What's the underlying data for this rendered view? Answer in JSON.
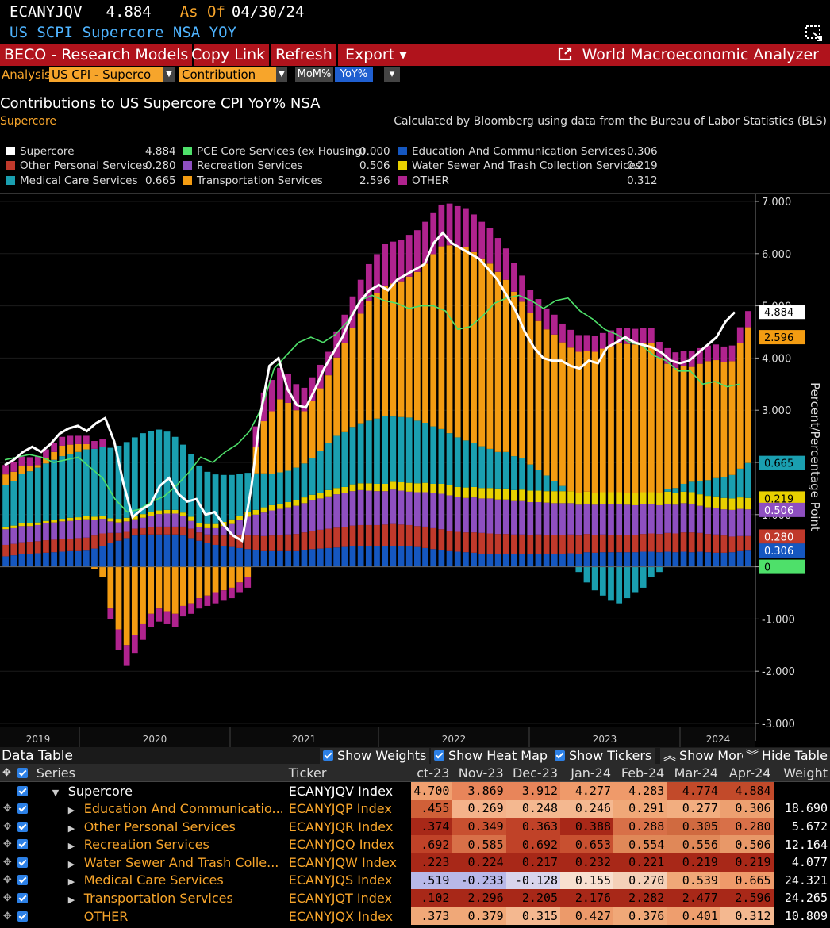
{
  "header": {
    "ticker": "ECANYJQV",
    "value": "4.884",
    "as_of_label": "As Of",
    "as_of_date": "04/30/24",
    "subtitle": "US SCPI Supercore NSA YOY"
  },
  "menu": {
    "items": [
      "BECO - Research Models",
      "Copy Link",
      "Refresh",
      "Export ▾"
    ],
    "app_name": "World Macroeconomic Analyzer"
  },
  "toolbar": {
    "analysis_label": "Analysis",
    "analysis_value": "US CPI - Superco",
    "mode_value": "Contribution",
    "mom_label": "MoM%",
    "yoy_label": "YoY%"
  },
  "chart_header": {
    "title": "Contributions to US Supercore CPI YoY% NSA",
    "subtitle": "Supercore",
    "note": "Calculated by Bloomberg using data from the Bureau of Labor Statistics (BLS)"
  },
  "legend": [
    {
      "name": "Supercore",
      "value": "4.884",
      "color": "#ffffff"
    },
    {
      "name": "Other Personal Services",
      "value": "0.280",
      "color": "#c0392b"
    },
    {
      "name": "Medical Care Services",
      "value": "0.665",
      "color": "#1a9fb0"
    },
    {
      "name": "PCE Core Services (ex Housing)",
      "value": "0.000",
      "color": "#4ee06a"
    },
    {
      "name": "Recreation Services",
      "value": "0.506",
      "color": "#8e4fc0"
    },
    {
      "name": "Transportation Services",
      "value": "2.596",
      "color": "#f39c12"
    },
    {
      "name": "Education And Communication Services",
      "value": "0.306",
      "color": "#1557c0"
    },
    {
      "name": "Water Sewer And Trash Collection Services",
      "value": "0.219",
      "color": "#e8d000"
    },
    {
      "name": "OTHER",
      "value": "0.312",
      "color": "#b0238e"
    }
  ],
  "chart_data": {
    "type": "bar",
    "stacked": true,
    "ylabel": "Percent/Percentage Point",
    "ylim": [
      -3,
      7
    ],
    "y_ticks": [
      "7.000",
      "6.000",
      "5.000",
      "4.000",
      "3.000",
      "2.000",
      "1.000",
      "0",
      "-1.000",
      "-2.000",
      "-3.000"
    ],
    "x_year_labels": [
      "2019",
      "2020",
      "2021",
      "2022",
      "2023",
      "2024"
    ],
    "series_order": [
      "edu",
      "oth",
      "rec",
      "water",
      "med",
      "trans",
      "other"
    ],
    "colors": {
      "edu": "#1557c0",
      "oth": "#c0392b",
      "rec": "#8e4fc0",
      "water": "#e8d000",
      "med": "#1a9fb0",
      "trans": "#f39c12",
      "other": "#b0238e",
      "total": "#ffffff",
      "pce": "#4ee06a"
    },
    "bars": {
      "edu": [
        0.2,
        0.22,
        0.24,
        0.25,
        0.26,
        0.27,
        0.28,
        0.29,
        0.3,
        0.3,
        0.31,
        0.35,
        0.4,
        0.45,
        0.5,
        0.55,
        0.6,
        0.62,
        0.62,
        0.62,
        0.62,
        0.62,
        0.6,
        0.55,
        0.5,
        0.45,
        0.42,
        0.4,
        0.38,
        0.36,
        0.34,
        0.32,
        0.3,
        0.3,
        0.3,
        0.3,
        0.3,
        0.32,
        0.34,
        0.35,
        0.36,
        0.37,
        0.38,
        0.4,
        0.4,
        0.4,
        0.4,
        0.4,
        0.4,
        0.4,
        0.4,
        0.38,
        0.36,
        0.34,
        0.32,
        0.3,
        0.29,
        0.28,
        0.27,
        0.25,
        0.25,
        0.25,
        0.25,
        0.24,
        0.25,
        0.24,
        0.25,
        0.25,
        0.24,
        0.25,
        0.26,
        0.25,
        0.28,
        0.27,
        0.28,
        0.28,
        0.28,
        0.28,
        0.28,
        0.29,
        0.29,
        0.28,
        0.29,
        0.28,
        0.29,
        0.28,
        0.29,
        0.28,
        0.27,
        0.27,
        0.28,
        0.3,
        0.31
      ],
      "oth": [
        0.22,
        0.22,
        0.23,
        0.23,
        0.23,
        0.24,
        0.24,
        0.24,
        0.24,
        0.25,
        0.25,
        0.25,
        0.24,
        0.2,
        0.15,
        0.12,
        0.13,
        0.12,
        0.14,
        0.15,
        0.15,
        0.15,
        0.17,
        0.18,
        0.16,
        0.17,
        0.18,
        0.2,
        0.22,
        0.25,
        0.27,
        0.28,
        0.29,
        0.3,
        0.31,
        0.32,
        0.33,
        0.34,
        0.35,
        0.36,
        0.37,
        0.38,
        0.38,
        0.39,
        0.4,
        0.4,
        0.4,
        0.41,
        0.42,
        0.41,
        0.4,
        0.4,
        0.41,
        0.4,
        0.4,
        0.39,
        0.38,
        0.38,
        0.39,
        0.4,
        0.39,
        0.38,
        0.38,
        0.38,
        0.37,
        0.37,
        0.37,
        0.36,
        0.37,
        0.36,
        0.36,
        0.35,
        0.35,
        0.34,
        0.34,
        0.33,
        0.33,
        0.33,
        0.33,
        0.34,
        0.35,
        0.35,
        0.36,
        0.36,
        0.37,
        0.38,
        0.36,
        0.35,
        0.35,
        0.33,
        0.3,
        0.29,
        0.28
      ],
      "rec": [
        0.3,
        0.3,
        0.31,
        0.3,
        0.31,
        0.32,
        0.33,
        0.34,
        0.34,
        0.34,
        0.35,
        0.3,
        0.28,
        0.22,
        0.2,
        0.2,
        0.18,
        0.2,
        0.22,
        0.24,
        0.25,
        0.25,
        0.2,
        0.15,
        0.1,
        0.12,
        0.14,
        0.18,
        0.22,
        0.28,
        0.35,
        0.4,
        0.45,
        0.48,
        0.5,
        0.52,
        0.54,
        0.56,
        0.58,
        0.6,
        0.62,
        0.64,
        0.65,
        0.66,
        0.67,
        0.66,
        0.65,
        0.64,
        0.66,
        0.65,
        0.64,
        0.65,
        0.66,
        0.67,
        0.68,
        0.68,
        0.67,
        0.66,
        0.67,
        0.66,
        0.67,
        0.66,
        0.66,
        0.64,
        0.64,
        0.63,
        0.62,
        0.62,
        0.61,
        0.61,
        0.6,
        0.59,
        0.58,
        0.58,
        0.58,
        0.59,
        0.59,
        0.58,
        0.57,
        0.57,
        0.56,
        0.55,
        0.56,
        0.55,
        0.56,
        0.55,
        0.52,
        0.51,
        0.51,
        0.5,
        0.51,
        0.52,
        0.51
      ],
      "water": [
        0.05,
        0.05,
        0.05,
        0.05,
        0.05,
        0.05,
        0.05,
        0.05,
        0.06,
        0.06,
        0.06,
        0.06,
        0.06,
        0.06,
        0.07,
        0.07,
        0.07,
        0.07,
        0.07,
        0.07,
        0.07,
        0.07,
        0.07,
        0.08,
        0.08,
        0.08,
        0.08,
        0.08,
        0.09,
        0.09,
        0.09,
        0.09,
        0.1,
        0.1,
        0.1,
        0.1,
        0.11,
        0.11,
        0.11,
        0.11,
        0.12,
        0.12,
        0.12,
        0.13,
        0.13,
        0.14,
        0.14,
        0.14,
        0.15,
        0.16,
        0.17,
        0.17,
        0.18,
        0.18,
        0.19,
        0.19,
        0.19,
        0.2,
        0.2,
        0.2,
        0.2,
        0.21,
        0.21,
        0.21,
        0.22,
        0.22,
        0.22,
        0.22,
        0.23,
        0.23,
        0.23,
        0.23,
        0.23,
        0.23,
        0.23,
        0.23,
        0.23,
        0.23,
        0.23,
        0.23,
        0.23,
        0.23,
        0.23,
        0.22,
        0.22,
        0.22,
        0.22,
        0.22,
        0.22,
        0.22,
        0.22,
        0.22,
        0.22
      ],
      "med": [
        0.8,
        0.85,
        0.95,
        1.0,
        1.05,
        1.1,
        1.15,
        1.2,
        1.22,
        1.25,
        1.28,
        1.3,
        1.32,
        1.35,
        1.4,
        1.45,
        1.5,
        1.55,
        1.55,
        1.55,
        1.5,
        1.4,
        1.3,
        1.2,
        1.1,
        1.0,
        0.95,
        0.9,
        0.85,
        0.8,
        0.75,
        0.7,
        0.65,
        0.6,
        0.6,
        0.6,
        0.62,
        0.65,
        0.7,
        0.8,
        0.9,
        1.0,
        1.05,
        1.1,
        1.15,
        1.2,
        1.25,
        1.3,
        1.25,
        1.25,
        1.25,
        1.2,
        1.15,
        1.1,
        1.05,
        1.0,
        0.95,
        0.9,
        0.85,
        0.8,
        0.75,
        0.7,
        0.7,
        0.65,
        0.6,
        0.5,
        0.4,
        0.3,
        0.2,
        0.1,
        0.0,
        -0.1,
        -0.3,
        -0.45,
        -0.55,
        -0.65,
        -0.7,
        -0.6,
        -0.5,
        -0.4,
        -0.2,
        -0.1,
        0.05,
        0.1,
        0.15,
        0.2,
        0.25,
        0.3,
        0.35,
        0.4,
        0.45,
        0.55,
        0.67
      ],
      "trans": [
        0.2,
        0.18,
        0.15,
        0.1,
        0.05,
        0.1,
        0.15,
        0.2,
        0.18,
        0.15,
        0.1,
        -0.05,
        -0.2,
        -0.8,
        -1.2,
        -1.5,
        -1.3,
        -1.1,
        -0.9,
        -0.8,
        -0.85,
        -0.9,
        -0.75,
        -0.7,
        -0.6,
        -0.55,
        -0.5,
        -0.45,
        -0.4,
        -0.3,
        -0.2,
        0.5,
        1.0,
        1.2,
        1.4,
        1.3,
        1.1,
        1.0,
        1.1,
        1.2,
        1.3,
        1.5,
        1.7,
        1.9,
        2.1,
        2.3,
        2.4,
        2.5,
        2.55,
        2.6,
        2.7,
        2.85,
        3.05,
        3.3,
        3.5,
        3.6,
        3.65,
        3.7,
        3.65,
        3.6,
        3.55,
        3.45,
        3.3,
        3.15,
        3.0,
        2.9,
        2.85,
        2.8,
        2.8,
        2.75,
        2.75,
        2.7,
        2.7,
        2.7,
        2.75,
        2.8,
        2.85,
        2.85,
        2.85,
        2.85,
        2.85,
        2.6,
        2.4,
        2.3,
        2.25,
        2.2,
        2.25,
        2.28,
        2.26,
        2.2,
        2.18,
        2.4,
        2.6
      ],
      "other": [
        0.18,
        0.18,
        0.18,
        0.17,
        0.17,
        0.17,
        0.17,
        0.17,
        0.17,
        0.16,
        0.16,
        0.15,
        0.14,
        -0.2,
        -0.4,
        -0.4,
        -0.35,
        -0.3,
        -0.25,
        -0.25,
        -0.25,
        -0.25,
        -0.2,
        -0.2,
        -0.2,
        -0.2,
        -0.2,
        -0.2,
        -0.2,
        -0.2,
        -0.2,
        0.4,
        0.55,
        0.6,
        0.6,
        0.55,
        0.5,
        0.45,
        0.45,
        0.45,
        0.45,
        0.5,
        0.55,
        0.6,
        0.65,
        0.7,
        0.75,
        0.8,
        0.8,
        0.8,
        0.8,
        0.8,
        0.8,
        0.8,
        0.8,
        0.8,
        0.78,
        0.75,
        0.72,
        0.7,
        0.68,
        0.65,
        0.6,
        0.55,
        0.5,
        0.45,
        0.42,
        0.4,
        0.38,
        0.36,
        0.34,
        0.32,
        0.3,
        0.3,
        0.3,
        0.3,
        0.3,
        0.3,
        0.3,
        0.3,
        0.3,
        0.3,
        0.3,
        0.3,
        0.3,
        0.3,
        0.3,
        0.3,
        0.3,
        0.3,
        0.3,
        0.31,
        0.31
      ]
    },
    "supercore_line": [
      1.95,
      2.05,
      2.2,
      2.3,
      2.2,
      2.35,
      2.55,
      2.65,
      2.7,
      2.6,
      2.75,
      2.85,
      2.4,
      1.6,
      0.95,
      1.1,
      1.2,
      1.55,
      1.7,
      1.4,
      1.25,
      1.3,
      1.0,
      1.05,
      0.8,
      0.6,
      0.5,
      1.5,
      2.9,
      3.85,
      4.0,
      3.4,
      3.1,
      3.05,
      3.4,
      3.8,
      4.1,
      4.4,
      4.8,
      5.1,
      5.3,
      5.4,
      5.3,
      5.5,
      5.6,
      5.7,
      5.8,
      6.2,
      6.4,
      6.2,
      6.1,
      6.0,
      5.9,
      5.7,
      5.5,
      5.2,
      4.9,
      4.5,
      4.2,
      4.0,
      3.95,
      3.95,
      3.85,
      3.8,
      3.95,
      3.9,
      4.2,
      4.3,
      4.4,
      4.3,
      4.25,
      4.2,
      4.1,
      3.95,
      3.9,
      3.95,
      4.1,
      4.25,
      4.4,
      4.7,
      4.88
    ],
    "pce_line": [
      2.05,
      2.1,
      2.15,
      2.1,
      2.0,
      2.05,
      2.1,
      1.9,
      1.7,
      1.3,
      1.05,
      1.1,
      1.25,
      1.35,
      1.55,
      1.8,
      2.1,
      2.0,
      2.2,
      2.35,
      2.6,
      3.05,
      3.8,
      4.05,
      4.3,
      4.4,
      4.3,
      4.45,
      4.7,
      5.1,
      5.2,
      5.1,
      5.05,
      4.95,
      5.0,
      5.0,
      4.9,
      4.55,
      4.6,
      4.8,
      5.05,
      5.15,
      5.2,
      5.1,
      4.95,
      5.1,
      5.15,
      4.9,
      4.75,
      4.55,
      4.45,
      4.3,
      4.25,
      4.05,
      3.95,
      3.75,
      3.75,
      3.5,
      3.55,
      3.45,
      3.5
    ],
    "right_tags": [
      {
        "label": "4.884",
        "value": 4.884,
        "bg": "#ffffff",
        "fg": "#000000"
      },
      {
        "label": "2.596",
        "value": 4.4,
        "bg": "#f39c12",
        "fg": "#000000"
      },
      {
        "label": "0.665",
        "value": 1.99,
        "bg": "#1a9fb0",
        "fg": "#000000"
      },
      {
        "label": "0.219",
        "value": 1.31,
        "bg": "#e8d000",
        "fg": "#000000"
      },
      {
        "label": "0.506",
        "value": 1.09,
        "bg": "#8e4fc0",
        "fg": "#ffffff"
      },
      {
        "label": "0.280",
        "value": 0.58,
        "bg": "#c0392b",
        "fg": "#ffffff"
      },
      {
        "label": "0.306",
        "value": 0.31,
        "bg": "#1557c0",
        "fg": "#ffffff"
      },
      {
        "label": "0",
        "value": 0.0,
        "bg": "#4ee06a",
        "fg": "#000000"
      }
    ]
  },
  "data_table": {
    "title": "Data Table",
    "buttons": [
      "Show Weights",
      "Show Heat Map",
      "Show Tickers",
      "Show More",
      "Hide Table"
    ],
    "columns": [
      "Series",
      "Ticker",
      "ct-23",
      "Nov-23",
      "Dec-23",
      "Jan-24",
      "Feb-24",
      "Mar-24",
      "Apr-24",
      "Weight"
    ],
    "rows": [
      {
        "series": "Supercore",
        "ticker": "ECANYJQV Index",
        "values": [
          "4.700",
          "3.869",
          "3.912",
          "4.277",
          "4.283",
          "4.774",
          "4.884"
        ],
        "weight": "",
        "main": true
      },
      {
        "series": "Education And Communicatio...",
        "ticker": "ECANYJQP Index",
        "values": [
          ".455",
          "0.269",
          "0.248",
          "0.246",
          "0.291",
          "0.277",
          "0.306"
        ],
        "weight": "18.690"
      },
      {
        "series": "Other Personal Services",
        "ticker": "ECANYJQR Index",
        "values": [
          ".374",
          "0.349",
          "0.363",
          "0.388",
          "0.288",
          "0.305",
          "0.280"
        ],
        "weight": "5.672"
      },
      {
        "series": "Recreation Services",
        "ticker": "ECANYJQQ Index",
        "values": [
          ".692",
          "0.585",
          "0.692",
          "0.653",
          "0.554",
          "0.556",
          "0.506"
        ],
        "weight": "12.164"
      },
      {
        "series": "Water Sewer And Trash Colle...",
        "ticker": "ECANYJQW Index",
        "values": [
          ".223",
          "0.224",
          "0.217",
          "0.232",
          "0.221",
          "0.219",
          "0.219"
        ],
        "weight": "4.077"
      },
      {
        "series": "Medical Care Services",
        "ticker": "ECANYJQS Index",
        "values": [
          ".519",
          "-0.233",
          "-0.128",
          "0.155",
          "0.270",
          "0.539",
          "0.665"
        ],
        "weight": "24.321"
      },
      {
        "series": "Transportation Services",
        "ticker": "ECANYJQT Index",
        "values": [
          ".102",
          "2.296",
          "2.205",
          "2.176",
          "2.282",
          "2.477",
          "2.596"
        ],
        "weight": "24.265"
      },
      {
        "series": "OTHER",
        "ticker": "ECANYJQX Index",
        "values": [
          ".373",
          "0.379",
          "0.315",
          "0.427",
          "0.376",
          "0.401",
          "0.312"
        ],
        "weight": "10.809"
      }
    ],
    "heat_colors": [
      [
        "#f0a070",
        "#e8855a",
        "#e8855a",
        "#ef9a6a",
        "#ef9a6a",
        "#c24a2a",
        "#c24a2a"
      ],
      [
        "#d06038",
        "#f4b28a",
        "#f4b890",
        "#f4b890",
        "#f0a878",
        "#f2ae80",
        "#eda070"
      ],
      [
        "#a82818",
        "#c85030",
        "#c04228",
        "#a82818",
        "#d87048",
        "#d06a40",
        "#d87048"
      ],
      [
        "#c04228",
        "#d87048",
        "#c04228",
        "#c85030",
        "#e08858",
        "#e08858",
        "#e89868"
      ],
      [
        "#a82818",
        "#a82818",
        "#a82818",
        "#a82818",
        "#a82818",
        "#a82818",
        "#a82818"
      ],
      [
        "#b8b8e8",
        "#b8b8e8",
        "#d8d4ec",
        "#f8e0d0",
        "#f4d0b8",
        "#f0a878",
        "#ef9a6a"
      ],
      [
        "#a82818",
        "#a82818",
        "#a82818",
        "#a82818",
        "#a82818",
        "#a82818",
        "#a82818"
      ],
      [
        "#f0a878",
        "#f0a878",
        "#f4b890",
        "#ec9a6a",
        "#f0a878",
        "#ee9e6e",
        "#f4b890"
      ]
    ]
  }
}
